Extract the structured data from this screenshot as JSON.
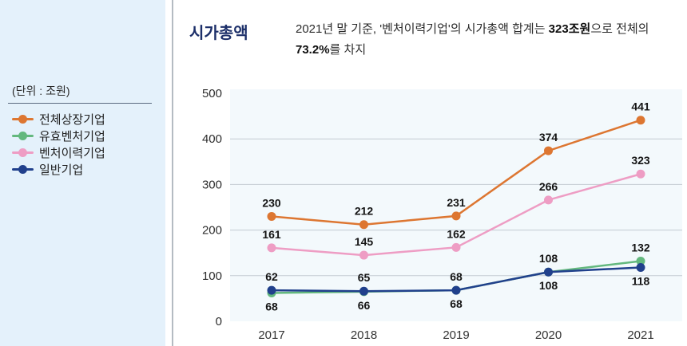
{
  "page": {
    "unit_label": "(단위 : 조원)"
  },
  "header": {
    "title": "시가총액",
    "desc": {
      "l1a": "2021년 말 기준, '벤처이력기업'의 시가총액 합계는 ",
      "l1b": "323조원",
      "l1c": "으로 전체의",
      "l2a": "73.2%",
      "l2b": "를 차지"
    }
  },
  "colors": {
    "sidebar_bg": "#e4f1fb",
    "panel_divider": "#b4bbc2",
    "title_navy": "#1c2f69",
    "plot_bg": "#f3f9fc",
    "gridline": "#c3cad2",
    "data_label": "#141414"
  },
  "chart_data": {
    "type": "line",
    "title": "시가총액",
    "unit": "조원",
    "x": [
      "2017",
      "2018",
      "2019",
      "2020",
      "2021"
    ],
    "series": [
      {
        "name": "전체상장기업",
        "color": "#dd7631",
        "values": [
          230,
          212,
          231,
          374,
          441
        ],
        "label_side": "above"
      },
      {
        "name": "유효벤처기업",
        "color": "#63b87e",
        "values": [
          62,
          65,
          68,
          108,
          132
        ],
        "label_side": "above"
      },
      {
        "name": "벤처이력기업",
        "color": "#ee9dc4",
        "values": [
          161,
          145,
          162,
          266,
          323
        ],
        "label_side": "above"
      },
      {
        "name": "일반기업",
        "color": "#20408c",
        "values": [
          68,
          66,
          68,
          108,
          118
        ],
        "label_side": "below"
      }
    ],
    "ylim": [
      0,
      500
    ],
    "yticks": [
      0,
      100,
      200,
      300,
      400,
      500
    ],
    "grid": true,
    "legend_position": "left",
    "data_labels": true
  }
}
